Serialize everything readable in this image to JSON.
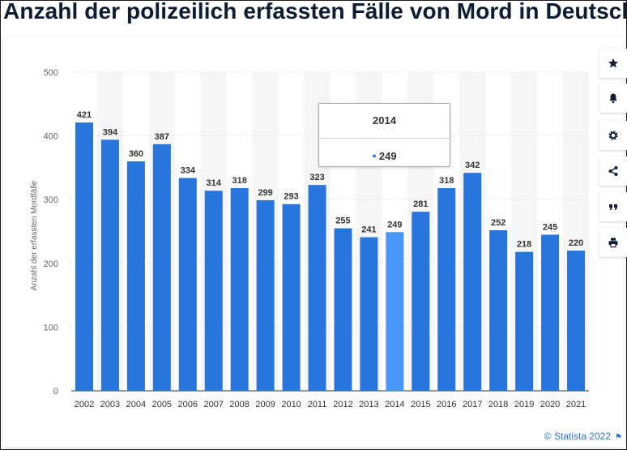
{
  "headline": "Anzahl der polizeilich erfassten Fälle von Mord in Deutschla",
  "credit": "© Statista 2022",
  "tooltip": {
    "year": "2014",
    "value": "249"
  },
  "toolbar": [
    "star-icon",
    "bell-icon",
    "gear-icon",
    "share-icon",
    "quote-icon",
    "print-icon"
  ],
  "colors": {
    "bar": "#2876dd",
    "bar_highlight": "#4596f5",
    "title": "#0c1d33",
    "link": "#2876dd"
  },
  "chart_data": {
    "type": "bar",
    "categories": [
      "2002",
      "2003",
      "2004",
      "2005",
      "2006",
      "2007",
      "2008",
      "2009",
      "2010",
      "2011",
      "2012",
      "2013",
      "2014",
      "2015",
      "2016",
      "2017",
      "2018",
      "2019",
      "2020",
      "2021"
    ],
    "values": [
      421,
      394,
      360,
      387,
      334,
      314,
      318,
      299,
      293,
      323,
      255,
      241,
      249,
      281,
      318,
      342,
      252,
      218,
      245,
      220
    ],
    "ylabel": "Anzahl der erfassten Mordfälle",
    "xlabel": "",
    "ylim": [
      0,
      500
    ],
    "yticks": [
      0,
      100,
      200,
      300,
      400,
      500
    ],
    "highlighted": "2014",
    "grid": true
  }
}
